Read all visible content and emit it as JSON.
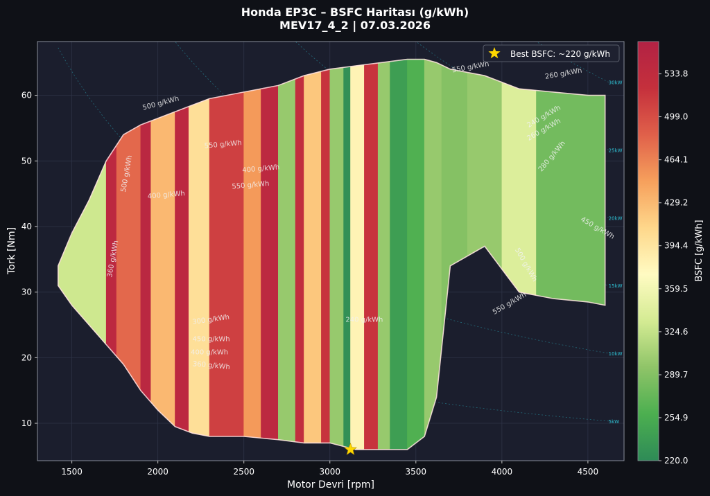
{
  "chart_data": {
    "type": "heatmap",
    "title": "Honda EP3C – BSFC Haritası (g/kWh)",
    "subtitle": "MEV17_4_2 | 07.03.2026",
    "xlabel": "Motor Devri [rpm]",
    "ylabel": "Tork [Nm]",
    "xlim": [
      1300,
      4710
    ],
    "ylim": [
      4.3,
      68.2
    ],
    "x_ticks": [
      1500,
      2000,
      2500,
      3000,
      3500,
      4000,
      4500
    ],
    "y_ticks": [
      10,
      20,
      30,
      40,
      50,
      60
    ],
    "grid": true,
    "colorbar": {
      "label": "BSFC [g/kWh]",
      "range": [
        220.0,
        560.0
      ],
      "ticks": [
        "220.0",
        "254.9",
        "289.7",
        "324.6",
        "359.5",
        "394.4",
        "429.2",
        "464.1",
        "499.0",
        "533.8"
      ],
      "colormap": [
        "#2e8b57",
        "#4caf50",
        "#8fc468",
        "#d4eb93",
        "#fffbc2",
        "#fed78b",
        "#f6a05c",
        "#e0604a",
        "#c5303c",
        "#b22244"
      ]
    },
    "legend": {
      "position": "top-right",
      "entries": [
        {
          "label": "Best BSFC: ~220 g/kWh",
          "marker": "star",
          "color": "#ffd700"
        }
      ]
    },
    "best_point": {
      "rpm": 3120,
      "torque": 6.0,
      "bsfc": 220
    },
    "power_lines": [
      {
        "label": "5kW",
        "kw": 5
      },
      {
        "label": "10kW",
        "kw": 10
      },
      {
        "label": "15kW",
        "kw": 15
      },
      {
        "label": "20kW",
        "kw": 20
      },
      {
        "label": "25kW",
        "kw": 25
      },
      {
        "label": "30kW",
        "kw": 30
      }
    ],
    "contour_labels": [
      {
        "text": "550 g/kWh",
        "rpm": 2380,
        "torque": 52.2,
        "angle": -5
      },
      {
        "text": "550 g/kWh",
        "rpm": 2540,
        "torque": 46.0,
        "angle": -5
      },
      {
        "text": "550 g/kWh",
        "rpm": 3820,
        "torque": 64.0,
        "angle": -10
      },
      {
        "text": "550 g/kWh",
        "rpm": 4050,
        "torque": 28.0,
        "angle": -30
      },
      {
        "text": "500 g/kWh",
        "rpm": 2020,
        "torque": 58.5,
        "angle": -15
      },
      {
        "text": "500 g/kWh",
        "rpm": 4130,
        "torque": 34.0,
        "angle": 60
      },
      {
        "text": "500 g/kWh",
        "rpm": 1830,
        "torque": 48.0,
        "angle": -80
      },
      {
        "text": "400 g/kWh",
        "rpm": 2600,
        "torque": 48.5,
        "angle": -5
      },
      {
        "text": "400 g/kWh",
        "rpm": 2050,
        "torque": 44.5,
        "angle": -5
      },
      {
        "text": "400 g/kWh",
        "rpm": 2300,
        "torque": 20.5,
        "angle": 0
      },
      {
        "text": "450 g/kWh",
        "rpm": 2310,
        "torque": 22.5,
        "angle": 0
      },
      {
        "text": "300 g/kWh",
        "rpm": 2310,
        "torque": 25.5,
        "angle": -8
      },
      {
        "text": "360 g/kWh",
        "rpm": 2310,
        "torque": 18.5,
        "angle": 5
      },
      {
        "text": "360 g/kWh",
        "rpm": 1750,
        "torque": 35.0,
        "angle": -80
      },
      {
        "text": "240 g/kWh",
        "rpm": 4250,
        "torque": 56.5,
        "angle": -30
      },
      {
        "text": "260 g/kWh",
        "rpm": 4250,
        "torque": 54.5,
        "angle": -30
      },
      {
        "text": "280 g/kWh",
        "rpm": 4300,
        "torque": 50.5,
        "angle": -50
      },
      {
        "text": "260 g/kWh",
        "rpm": 4360,
        "torque": 63.0,
        "angle": -10
      },
      {
        "text": "450 g/kWh",
        "rpm": 4550,
        "torque": 39.5,
        "angle": 30
      },
      {
        "text": "240 g/kWh",
        "rpm": 3200,
        "torque": 25.5,
        "angle": 0
      }
    ],
    "envelope": [
      {
        "rpm": 1420,
        "tmin": 31.0,
        "tmax": 34.0
      },
      {
        "rpm": 1500,
        "tmin": 28.0,
        "tmax": 39.0
      },
      {
        "rpm": 1600,
        "tmin": 25.0,
        "tmax": 44.0
      },
      {
        "rpm": 1700,
        "tmin": 22.0,
        "tmax": 50.0
      },
      {
        "rpm": 1800,
        "tmin": 19.0,
        "tmax": 54.0
      },
      {
        "rpm": 1900,
        "tmin": 15.0,
        "tmax": 55.5
      },
      {
        "rpm": 2000,
        "tmin": 12.0,
        "tmax": 56.5
      },
      {
        "rpm": 2100,
        "tmin": 9.5,
        "tmax": 57.5
      },
      {
        "rpm": 2200,
        "tmin": 8.5,
        "tmax": 58.5
      },
      {
        "rpm": 2300,
        "tmin": 8.0,
        "tmax": 59.5
      },
      {
        "rpm": 2500,
        "tmin": 8.0,
        "tmax": 60.5
      },
      {
        "rpm": 2700,
        "tmin": 7.5,
        "tmax": 61.5
      },
      {
        "rpm": 2850,
        "tmin": 7.0,
        "tmax": 63.0
      },
      {
        "rpm": 3000,
        "tmin": 7.0,
        "tmax": 64.0
      },
      {
        "rpm": 3150,
        "tmin": 6.0,
        "tmax": 64.5
      },
      {
        "rpm": 3300,
        "tmin": 6.0,
        "tmax": 65.0
      },
      {
        "rpm": 3450,
        "tmin": 6.0,
        "tmax": 65.5
      },
      {
        "rpm": 3550,
        "tmin": 8.0,
        "tmax": 65.5
      },
      {
        "rpm": 3620,
        "tmin": 14.0,
        "tmax": 65.0
      },
      {
        "rpm": 3700,
        "tmin": 34.0,
        "tmax": 64.0
      },
      {
        "rpm": 3900,
        "tmin": 37.0,
        "tmax": 63.0
      },
      {
        "rpm": 4100,
        "tmin": 30.0,
        "tmax": 61.0
      },
      {
        "rpm": 4300,
        "tmin": 29.0,
        "tmax": 60.5
      },
      {
        "rpm": 4500,
        "tmin": 28.5,
        "tmax": 60.0
      },
      {
        "rpm": 4600,
        "tmin": 28.0,
        "tmax": 60.0
      }
    ],
    "bsfc_bands": [
      {
        "rpm_from": 1420,
        "rpm_to": 1700,
        "bsfc": 330
      },
      {
        "rpm_from": 1700,
        "rpm_to": 1760,
        "bsfc": 540
      },
      {
        "rpm_from": 1760,
        "rpm_to": 1900,
        "bsfc": 480
      },
      {
        "rpm_from": 1900,
        "rpm_to": 1960,
        "bsfc": 545
      },
      {
        "rpm_from": 1960,
        "rpm_to": 2100,
        "bsfc": 430
      },
      {
        "rpm_from": 2100,
        "rpm_to": 2180,
        "bsfc": 540
      },
      {
        "rpm_from": 2180,
        "rpm_to": 2300,
        "bsfc": 400
      },
      {
        "rpm_from": 2300,
        "rpm_to": 2500,
        "bsfc": 510
      },
      {
        "rpm_from": 2500,
        "rpm_to": 2600,
        "bsfc": 450
      },
      {
        "rpm_from": 2600,
        "rpm_to": 2700,
        "bsfc": 540
      },
      {
        "rpm_from": 2700,
        "rpm_to": 2800,
        "bsfc": 300
      },
      {
        "rpm_from": 2800,
        "rpm_to": 2850,
        "bsfc": 530
      },
      {
        "rpm_from": 2850,
        "rpm_to": 2950,
        "bsfc": 420
      },
      {
        "rpm_from": 2950,
        "rpm_to": 3000,
        "bsfc": 520
      },
      {
        "rpm_from": 3000,
        "rpm_to": 3080,
        "bsfc": 300
      },
      {
        "rpm_from": 3080,
        "rpm_to": 3120,
        "bsfc": 225
      },
      {
        "rpm_from": 3120,
        "rpm_to": 3200,
        "bsfc": 380
      },
      {
        "rpm_from": 3200,
        "rpm_to": 3280,
        "bsfc": 520
      },
      {
        "rpm_from": 3280,
        "rpm_to": 3350,
        "bsfc": 300
      },
      {
        "rpm_from": 3350,
        "rpm_to": 3450,
        "bsfc": 240
      },
      {
        "rpm_from": 3450,
        "rpm_to": 3550,
        "bsfc": 260
      },
      {
        "rpm_from": 3550,
        "rpm_to": 3650,
        "bsfc": 300
      },
      {
        "rpm_from": 3650,
        "rpm_to": 3800,
        "bsfc": 290
      },
      {
        "rpm_from": 3800,
        "rpm_to": 4000,
        "bsfc": 300
      },
      {
        "rpm_from": 4000,
        "rpm_to": 4200,
        "bsfc": 340
      },
      {
        "rpm_from": 4200,
        "rpm_to": 4600,
        "bsfc": 280
      }
    ]
  }
}
